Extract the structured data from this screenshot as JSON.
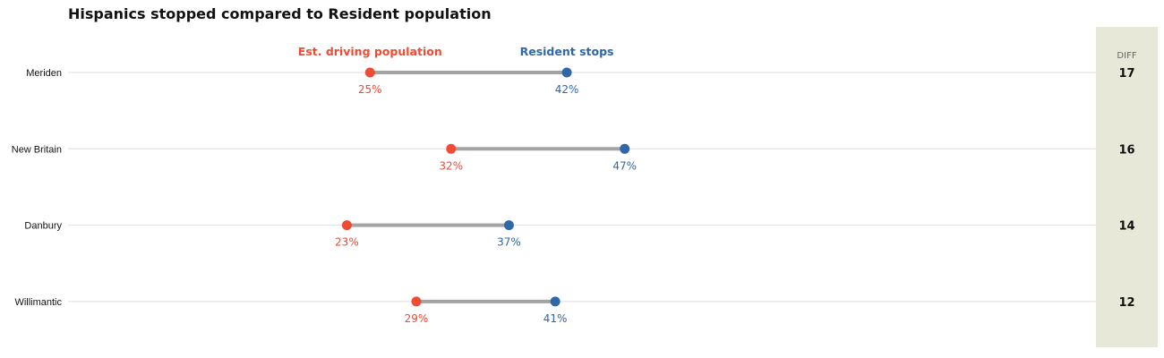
{
  "colors": {
    "population": "#f04b33",
    "stops": "#2f67a8",
    "connector": "#a3a3a3",
    "gridline": "#dddddd",
    "diff_panel": "#e8e8d8"
  },
  "chart_data": {
    "type": "dumbbell",
    "title": "Hispanics stopped compared to Resident population",
    "value_suffix": "%",
    "diff_header": "DIFF",
    "series": [
      {
        "key": "population",
        "name": "Est. driving population",
        "color": "#f04b33"
      },
      {
        "key": "stops",
        "name": "Resident stops",
        "color": "#2f67a8"
      }
    ],
    "rows": [
      {
        "label": "Meriden",
        "population": 25,
        "stops": 42,
        "diff": 17
      },
      {
        "label": "New Britain",
        "population": 32,
        "stops": 47,
        "diff": 16
      },
      {
        "label": "Danbury",
        "population": 23,
        "stops": 37,
        "diff": 14
      },
      {
        "label": "Willimantic",
        "population": 29,
        "stops": 41,
        "diff": 12
      }
    ],
    "legend_placement": "above first row",
    "grid": true
  }
}
